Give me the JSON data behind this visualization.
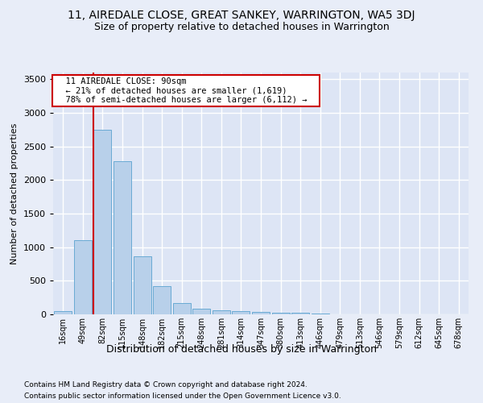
{
  "title": "11, AIREDALE CLOSE, GREAT SANKEY, WARRINGTON, WA5 3DJ",
  "subtitle": "Size of property relative to detached houses in Warrington",
  "xlabel": "Distribution of detached houses by size in Warrington",
  "ylabel": "Number of detached properties",
  "footnote1": "Contains HM Land Registry data © Crown copyright and database right 2024.",
  "footnote2": "Contains public sector information licensed under the Open Government Licence v3.0.",
  "annotation_title": "11 AIREDALE CLOSE: 90sqm",
  "annotation_line1": "← 21% of detached houses are smaller (1,619)",
  "annotation_line2": "78% of semi-detached houses are larger (6,112) →",
  "bar_labels": [
    "16sqm",
    "49sqm",
    "82sqm",
    "115sqm",
    "148sqm",
    "182sqm",
    "215sqm",
    "248sqm",
    "281sqm",
    "314sqm",
    "347sqm",
    "380sqm",
    "413sqm",
    "446sqm",
    "479sqm",
    "513sqm",
    "546sqm",
    "579sqm",
    "612sqm",
    "645sqm",
    "678sqm"
  ],
  "bar_values": [
    50,
    1100,
    2750,
    2280,
    870,
    415,
    170,
    90,
    60,
    50,
    40,
    30,
    25,
    15,
    0,
    0,
    0,
    0,
    0,
    0,
    0
  ],
  "bar_color": "#b8d0ea",
  "bar_edge_color": "#6aaad4",
  "ylim": [
    0,
    3600
  ],
  "yticks": [
    0,
    500,
    1000,
    1500,
    2000,
    2500,
    3000,
    3500
  ],
  "background_color": "#e8edf8",
  "plot_bg_color": "#dde5f5",
  "grid_color": "#ffffff",
  "title_fontsize": 10,
  "subtitle_fontsize": 9,
  "xlabel_fontsize": 9,
  "ylabel_fontsize": 8,
  "annotation_box_color": "#ffffff",
  "annotation_box_edge": "#cc0000",
  "red_line_color": "#cc0000",
  "footnote_fontsize": 6.5
}
